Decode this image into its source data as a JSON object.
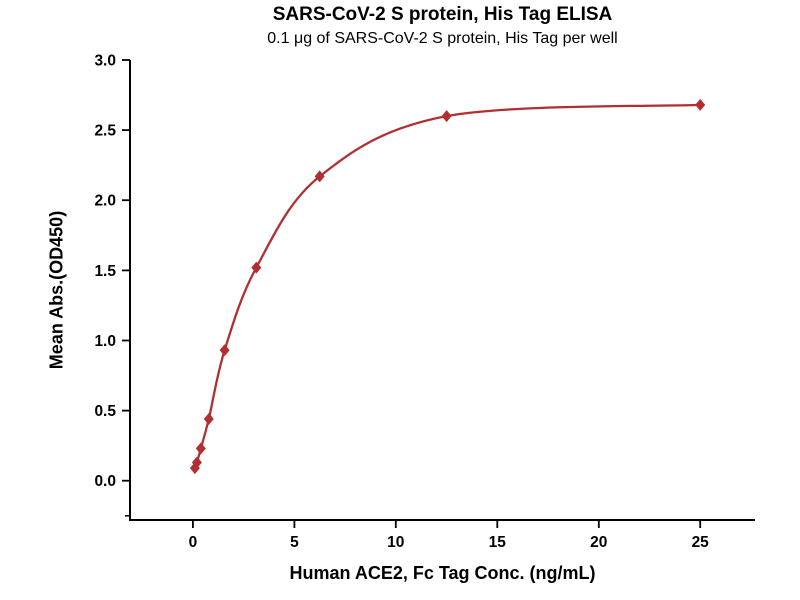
{
  "chart": {
    "title": "SARS-CoV-2 S protein, His Tag ELISA",
    "subtitle": "0.1 μg of SARS-CoV-2 S protein, His Tag per well",
    "xlabel": "Human ACE2, Fc Tag Conc. (ng/mL)",
    "ylabel": "Mean Abs.(OD450)"
  },
  "chart_data": {
    "type": "scatter",
    "title": "SARS-CoV-2 S protein, His Tag ELISA",
    "subtitle": "0.1 μg of SARS-CoV-2 S protein, His Tag per well",
    "xlabel": "Human ACE2, Fc Tag Conc. (ng/mL)",
    "ylabel": "Mean Abs.(OD450)",
    "x": [
      0.098,
      0.195,
      0.391,
      0.781,
      1.563,
      3.125,
      6.25,
      12.5,
      25
    ],
    "y": [
      0.09,
      0.13,
      0.23,
      0.44,
      0.93,
      1.52,
      2.17,
      2.6,
      2.68
    ],
    "fit_curve": "smooth sigmoidal (4PL-style) through points",
    "marker": "diamond",
    "color": "#b03032",
    "axis_color": "#000000",
    "background": "#ffffff",
    "grid": false,
    "legend": "none",
    "xlim": [
      -3.1,
      27.7
    ],
    "ylim": [
      -0.28,
      3.0
    ],
    "x_ticks": [
      0,
      5,
      10,
      15,
      20,
      25
    ],
    "x_tick_labels": [
      "0",
      "5",
      "10",
      "15",
      "20",
      "25"
    ],
    "y_ticks": [
      0,
      0.5,
      1,
      1.5,
      2,
      2.5,
      3
    ],
    "y_tick_labels": [
      "0.0",
      "0.5",
      "1.0",
      "1.5",
      "2.0",
      "2.5",
      "3.0"
    ],
    "y_minor_ticks": [
      -0.25
    ]
  }
}
